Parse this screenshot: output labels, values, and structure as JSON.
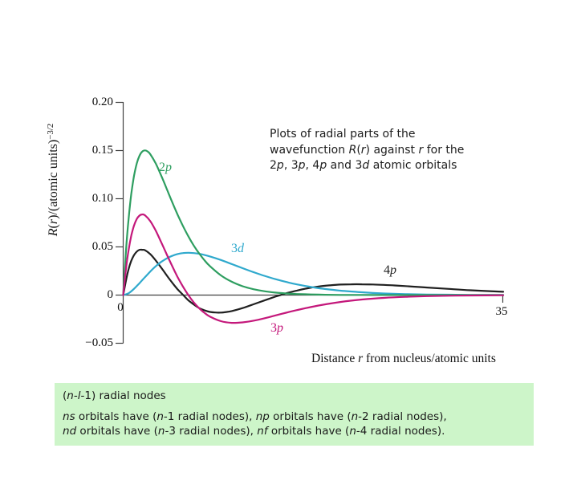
{
  "chart_data": {
    "type": "line",
    "xlabel_segments": [
      {
        "t": "Distance "
      },
      {
        "t": "r",
        "i": 1
      },
      {
        "t": " from nucleus/atomic units"
      }
    ],
    "ylabel_segments": [
      {
        "t": "R",
        "i": 1
      },
      {
        "t": "("
      },
      {
        "t": "r",
        "i": 1
      },
      {
        "t": ")/(atomic units)"
      },
      {
        "t": "−3/2",
        "s": 1
      }
    ],
    "xlim": [
      0,
      35
    ],
    "ylim": [
      -0.05,
      0.2
    ],
    "grid": false,
    "x_ticks": [
      {
        "label": "0",
        "value": 0
      },
      {
        "label": "35",
        "value": 35
      }
    ],
    "y_ticks": [
      {
        "label": "0.20",
        "value": 0.2
      },
      {
        "label": "0.15",
        "value": 0.15
      },
      {
        "label": "0.10",
        "value": 0.1
      },
      {
        "label": "0.05",
        "value": 0.05
      },
      {
        "label": "0",
        "value": 0
      },
      {
        "label": "−0.05",
        "value": -0.05
      }
    ],
    "annotation_lines": [
      [
        {
          "t": "Plots of radial parts of the"
        }
      ],
      [
        {
          "t": "wavefunction "
        },
        {
          "t": "R",
          "i": 1
        },
        {
          "t": "("
        },
        {
          "t": "r",
          "i": 1
        },
        {
          "t": ") against "
        },
        {
          "t": "r",
          "i": 1
        },
        {
          "t": " for the"
        }
      ],
      [
        {
          "t": "2"
        },
        {
          "t": "p",
          "i": 1
        },
        {
          "t": ", 3"
        },
        {
          "t": "p",
          "i": 1
        },
        {
          "t": ", 4"
        },
        {
          "t": "p",
          "i": 1
        },
        {
          "t": " and 3"
        },
        {
          "t": "d",
          "i": 1
        },
        {
          "t": " atomic orbitals"
        }
      ]
    ],
    "series": [
      {
        "name": "4p",
        "color": "#202020",
        "label_segments": [
          {
            "t": "4"
          },
          {
            "t": "p",
            "i": 1
          }
        ],
        "points": [
          [
            0,
            0
          ],
          [
            0.25,
            0.0147
          ],
          [
            0.5,
            0.0271
          ],
          [
            0.75,
            0.0357
          ],
          [
            1,
            0.0415
          ],
          [
            1.25,
            0.0451
          ],
          [
            1.5,
            0.047
          ],
          [
            1.75,
            0.047
          ],
          [
            2,
            0.0466
          ],
          [
            2.5,
            0.0424
          ],
          [
            3,
            0.0359
          ],
          [
            3.5,
            0.0285
          ],
          [
            4,
            0.0206
          ],
          [
            4.5,
            0.0131
          ],
          [
            5,
            0.0062
          ],
          [
            5.53,
            0
          ],
          [
            6,
            -0.0054
          ],
          [
            6.5,
            -0.0097
          ],
          [
            7,
            -0.0135
          ],
          [
            7.5,
            -0.0159
          ],
          [
            8,
            -0.0175
          ],
          [
            8.5,
            -0.0181
          ],
          [
            9,
            -0.0182
          ],
          [
            9.5,
            -0.0176
          ],
          [
            10,
            -0.0166
          ],
          [
            11,
            -0.0135
          ],
          [
            12,
            -0.0096
          ],
          [
            13,
            -0.0056
          ],
          [
            14,
            -0.0017
          ],
          [
            14.5,
            0.0001
          ],
          [
            15,
            0.0018
          ],
          [
            16,
            0.0047
          ],
          [
            17,
            0.0071
          ],
          [
            18,
            0.0089
          ],
          [
            19,
            0.0101
          ],
          [
            20,
            0.0109
          ],
          [
            21,
            0.0112
          ],
          [
            22,
            0.0112
          ],
          [
            23,
            0.011
          ],
          [
            24,
            0.0106
          ],
          [
            25,
            0.01
          ],
          [
            26,
            0.0093
          ],
          [
            28,
            0.0078
          ],
          [
            30,
            0.0064
          ],
          [
            32,
            0.005
          ],
          [
            35,
            0.0034
          ]
        ]
      },
      {
        "name": "3d",
        "color": "#2fa9cd",
        "label_segments": [
          {
            "t": "3"
          },
          {
            "t": "d",
            "i": 1
          }
        ],
        "points": [
          [
            0,
            0
          ],
          [
            0.5,
            0.0019
          ],
          [
            1,
            0.0065
          ],
          [
            1.5,
            0.0123
          ],
          [
            2,
            0.0185
          ],
          [
            2.5,
            0.0245
          ],
          [
            3,
            0.0299
          ],
          [
            3.5,
            0.0344
          ],
          [
            4,
            0.038
          ],
          [
            4.5,
            0.0407
          ],
          [
            5,
            0.0426
          ],
          [
            5.5,
            0.0436
          ],
          [
            6,
            0.0439
          ],
          [
            6.5,
            0.0436
          ],
          [
            7,
            0.0428
          ],
          [
            7.5,
            0.0416
          ],
          [
            8,
            0.0401
          ],
          [
            9,
            0.0364
          ],
          [
            10,
            0.0322
          ],
          [
            11,
            0.0279
          ],
          [
            12,
            0.0238
          ],
          [
            13,
            0.02
          ],
          [
            14,
            0.0166
          ],
          [
            15,
            0.0137
          ],
          [
            16,
            0.0111
          ],
          [
            18,
            0.0072
          ],
          [
            20,
            0.0046
          ],
          [
            22,
            0.0029
          ],
          [
            24,
            0.0017
          ],
          [
            26,
            0.001
          ],
          [
            28,
            0.0006
          ],
          [
            30,
            0.0004
          ],
          [
            32,
            0.0002
          ],
          [
            35,
            0.0001
          ]
        ]
      },
      {
        "name": "2p",
        "color": "#2e9e60",
        "label_segments": [
          {
            "t": "2"
          },
          {
            "t": "p",
            "i": 1
          }
        ],
        "points": [
          [
            0,
            0
          ],
          [
            0.25,
            0.045
          ],
          [
            0.5,
            0.0795
          ],
          [
            0.75,
            0.1052
          ],
          [
            1,
            0.1238
          ],
          [
            1.25,
            0.1366
          ],
          [
            1.5,
            0.1446
          ],
          [
            1.75,
            0.1489
          ],
          [
            2,
            0.1502
          ],
          [
            2.25,
            0.1491
          ],
          [
            2.5,
            0.1462
          ],
          [
            3,
            0.1366
          ],
          [
            3.5,
            0.1241
          ],
          [
            4,
            0.1105
          ],
          [
            4.5,
            0.0968
          ],
          [
            5,
            0.0838
          ],
          [
            5.5,
            0.0718
          ],
          [
            6,
            0.061
          ],
          [
            6.5,
            0.0514
          ],
          [
            7,
            0.0432
          ],
          [
            7.5,
            0.0359
          ],
          [
            8,
            0.0299
          ],
          [
            9,
            0.0204
          ],
          [
            10,
            0.0138
          ],
          [
            11,
            0.0092
          ],
          [
            12,
            0.0061
          ],
          [
            13,
            0.004
          ],
          [
            14,
            0.0026
          ],
          [
            15,
            0.0017
          ],
          [
            16,
            0.0011
          ],
          [
            18,
            0.0005
          ],
          [
            20,
            0.0002
          ],
          [
            23,
            0.0001
          ],
          [
            26,
            0
          ],
          [
            30,
            0
          ],
          [
            35,
            0
          ]
        ]
      },
      {
        "name": "3p",
        "color": "#c4187b",
        "label_segments": [
          {
            "t": "3"
          },
          {
            "t": "p",
            "i": 1
          }
        ],
        "points": [
          [
            0,
            0
          ],
          [
            0.25,
            0.0267
          ],
          [
            0.5,
            0.0469
          ],
          [
            0.75,
            0.0618
          ],
          [
            1,
            0.0722
          ],
          [
            1.25,
            0.0789
          ],
          [
            1.5,
            0.0825
          ],
          [
            1.75,
            0.0837
          ],
          [
            2,
            0.0828
          ],
          [
            2.5,
            0.0767
          ],
          [
            3,
            0.0668
          ],
          [
            3.5,
            0.0549
          ],
          [
            4,
            0.0425
          ],
          [
            4.5,
            0.0304
          ],
          [
            5,
            0.019
          ],
          [
            5.5,
            0.0089
          ],
          [
            6,
            0
          ],
          [
            6.5,
            -0.0076
          ],
          [
            7,
            -0.0137
          ],
          [
            7.5,
            -0.0186
          ],
          [
            8,
            -0.0224
          ],
          [
            9,
            -0.0271
          ],
          [
            10,
            -0.0288
          ],
          [
            11,
            -0.0283
          ],
          [
            12,
            -0.0266
          ],
          [
            13,
            -0.0241
          ],
          [
            14,
            -0.0212
          ],
          [
            15,
            -0.0183
          ],
          [
            16,
            -0.0156
          ],
          [
            18,
            -0.0108
          ],
          [
            20,
            -0.0072
          ],
          [
            22,
            -0.0046
          ],
          [
            24,
            -0.0029
          ],
          [
            26,
            -0.0018
          ],
          [
            28,
            -0.0011
          ],
          [
            30,
            -0.0007
          ],
          [
            32,
            -0.0004
          ],
          [
            35,
            -0.0002
          ]
        ]
      }
    ]
  },
  "note_box": {
    "bg": "#cdf5c9",
    "title_segments": [
      {
        "t": "("
      },
      {
        "t": "n",
        "i": 1
      },
      {
        "t": "-"
      },
      {
        "t": "l",
        "i": 1
      },
      {
        "t": "-1) radial nodes"
      }
    ],
    "body_lines": [
      [
        {
          "t": "n",
          "i": 1
        },
        {
          "t": "s",
          "i": 1
        },
        {
          "t": " orbitals have ("
        },
        {
          "t": "n",
          "i": 1
        },
        {
          "t": "-1 radial nodes), "
        },
        {
          "t": "n",
          "i": 1
        },
        {
          "t": "p",
          "i": 1
        },
        {
          "t": " orbitals have ("
        },
        {
          "t": "n",
          "i": 1
        },
        {
          "t": "-2 radial nodes),"
        }
      ],
      [
        {
          "t": "n",
          "i": 1
        },
        {
          "t": "d",
          "i": 1
        },
        {
          "t": " orbitals have ("
        },
        {
          "t": "n",
          "i": 1
        },
        {
          "t": "-3 radial nodes), "
        },
        {
          "t": "n",
          "i": 1
        },
        {
          "t": "f",
          "i": 1
        },
        {
          "t": " orbitals have ("
        },
        {
          "t": "n",
          "i": 1
        },
        {
          "t": "-4 radial nodes)."
        }
      ]
    ]
  }
}
